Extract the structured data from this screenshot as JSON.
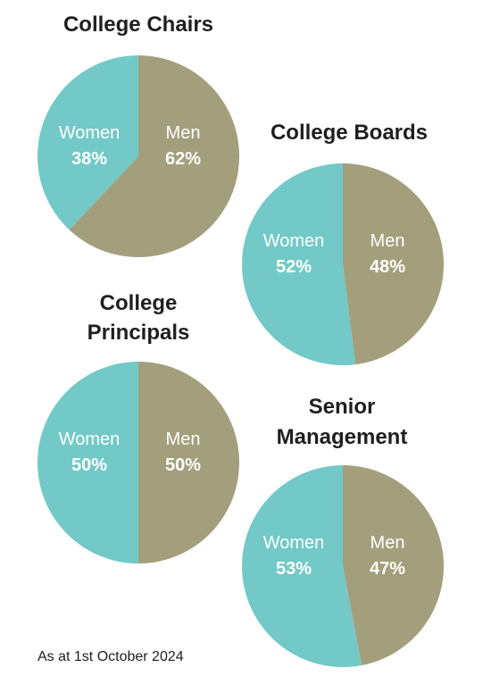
{
  "colors": {
    "women": "#72c9c7",
    "men": "#a39f7c",
    "label_text": "#ffffff"
  },
  "chart_data": [
    {
      "type": "pie",
      "title_lines": [
        "College Chairs"
      ],
      "slices": [
        {
          "label": "Women",
          "value": 38,
          "display": "38%"
        },
        {
          "label": "Men",
          "value": 62,
          "display": "62%"
        }
      ]
    },
    {
      "type": "pie",
      "title_lines": [
        "College Boards"
      ],
      "slices": [
        {
          "label": "Women",
          "value": 52,
          "display": "52%"
        },
        {
          "label": "Men",
          "value": 48,
          "display": "48%"
        }
      ]
    },
    {
      "type": "pie",
      "title_lines": [
        "College",
        "Principals"
      ],
      "slices": [
        {
          "label": "Women",
          "value": 50,
          "display": "50%"
        },
        {
          "label": "Men",
          "value": 50,
          "display": "50%"
        }
      ]
    },
    {
      "type": "pie",
      "title_lines": [
        "Senior",
        "Management"
      ],
      "slices": [
        {
          "label": "Women",
          "value": 53,
          "display": "53%"
        },
        {
          "label": "Men",
          "value": 47,
          "display": "47%"
        }
      ]
    }
  ],
  "footnote": "As at 1st October 2024"
}
